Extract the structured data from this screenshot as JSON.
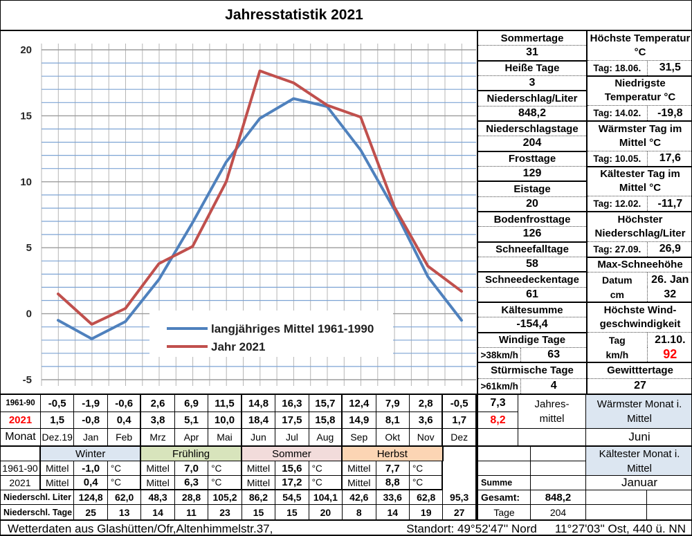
{
  "title": "Jahresstatistik 2021",
  "colors": {
    "grid_blue": "#7ca3d4",
    "grid_vertical": "#b5b5b5",
    "grid_major": "#9b9b9b",
    "red_text": "#ff0000",
    "highlight_blue": "#dce6f1"
  },
  "chart_data": {
    "type": "line",
    "title": "Jahresstatistik 2021",
    "categories": [
      "Dez.19",
      "Jan",
      "Feb",
      "Mrz",
      "Apr",
      "Mai",
      "Jun",
      "Jul",
      "Aug",
      "Sep",
      "Okt",
      "Nov",
      "Dez"
    ],
    "series": [
      {
        "name": "langjähriges Mittel 1961-1990",
        "color": "#4F81BD",
        "values": [
          -0.5,
          -1.9,
          -0.6,
          2.6,
          6.9,
          11.5,
          14.8,
          16.3,
          15.7,
          12.4,
          7.9,
          2.8,
          -0.5
        ]
      },
      {
        "name": "Jahr 2021",
        "color": "#C0504D",
        "values": [
          1.5,
          -0.8,
          0.4,
          3.8,
          5.1,
          10.0,
          18.4,
          17.5,
          15.8,
          14.9,
          8.1,
          3.6,
          1.7
        ]
      }
    ],
    "ylim": [
      -5,
      20
    ],
    "yticks": [
      20,
      15,
      10,
      5,
      0,
      -5
    ],
    "minor_grid_step": 1,
    "major_grid_step": 5,
    "grid": "on",
    "legend_position": "inside-lower-middle",
    "xlabel": "",
    "ylabel": ""
  },
  "stats_left": [
    {
      "label": "Sommertage",
      "value": "31"
    },
    {
      "label": "Heiße Tage",
      "value": "3"
    },
    {
      "label": "Niederschlag/Liter",
      "value": "848,2"
    },
    {
      "label": "Niederschlagstage",
      "value": "204"
    },
    {
      "label": "Frosttage",
      "value": "129"
    },
    {
      "label": "Eistage",
      "value": "20"
    },
    {
      "label": "Bodenfrosttage",
      "value": "126"
    },
    {
      "label": "Schneefalltage",
      "value": "58"
    },
    {
      "label": "Schneedeckentage",
      "value": "61"
    },
    {
      "label": "Kältesumme",
      "value": "-154,4"
    },
    {
      "label": "Windige Tage",
      "key": ">38km/h",
      "value": "63"
    },
    {
      "label": "Stürmische Tage",
      "key": ">61km/h",
      "value": "4"
    }
  ],
  "stats_right": [
    {
      "header_lines": [
        "Höchste Temperatur",
        "°C"
      ],
      "entries": [
        {
          "k": "Tag: 18.06.",
          "v": "31,5"
        }
      ]
    },
    {
      "header_lines": [
        "Niedrigste",
        "Temperatur °C"
      ],
      "entries": [
        {
          "k": "Tag: 14.02.",
          "v": "-19,8"
        }
      ]
    },
    {
      "header_lines": [
        "Wärmster Tag im",
        "Mittel °C"
      ],
      "entries": [
        {
          "k": "Tag: 10.05.",
          "v": "17,6"
        }
      ]
    },
    {
      "header_lines": [
        "Kältester Tag im",
        "Mittel °C"
      ],
      "entries": [
        {
          "k": "Tag: 12.02.",
          "v": "-11,7"
        }
      ]
    },
    {
      "header_lines": [
        "Höchster",
        "Niederschlag/Liter"
      ],
      "entries": [
        {
          "k": "Tag: 27.09.",
          "v": "26,9"
        }
      ]
    },
    {
      "header_lines": [
        "Max-Schneehöhe"
      ],
      "entries": [
        {
          "k": "Datum",
          "v": "26. Jan"
        },
        {
          "k": "cm",
          "v": "32"
        }
      ]
    },
    {
      "header_lines": [
        "Höchste Wind-",
        "geschwindigkeit"
      ],
      "entries": [
        {
          "k": "Tag",
          "v": "21.10."
        },
        {
          "k": "km/h",
          "v": "92",
          "red": true
        }
      ]
    },
    {
      "header_lines": [
        "Gewitttertage"
      ],
      "entries": [
        {
          "v": "27",
          "full": true
        }
      ]
    }
  ],
  "monthly": {
    "row_labels": [
      "1961-90",
      "2021",
      "Monat"
    ],
    "months": [
      "Dez.19",
      "Jan",
      "Feb",
      "Mrz",
      "Apr",
      "Mai",
      "Jun",
      "Jul",
      "Aug",
      "Sep",
      "Okt",
      "Nov",
      "Dez"
    ],
    "mean_1961_90": [
      "-0,5",
      "-1,9",
      "-0,6",
      "2,6",
      "6,9",
      "11,5",
      "14,8",
      "16,3",
      "15,7",
      "12,4",
      "7,9",
      "2,8",
      "-0,5"
    ],
    "year_2021": [
      "1,5",
      "-0,8",
      "0,4",
      "3,8",
      "5,1",
      "10,0",
      "18,4",
      "17,5",
      "15,8",
      "14,9",
      "8,1",
      "3,6",
      "1,7"
    ]
  },
  "annual": {
    "mean_1961_90": "7,3",
    "mean_2021": "8,2",
    "label_lines": [
      "Jahres-",
      "mittel"
    ],
    "warmest": {
      "label_lines": [
        "Wärmster Monat i.",
        "Mittel"
      ],
      "value": "Juni"
    },
    "coldest": {
      "label_lines": [
        "Kältester Monat i.",
        "Mittel"
      ],
      "value": "Januar"
    },
    "summe_label": "Summe",
    "gesamt_label": "Gesamt:",
    "gesamt_value": "848,2",
    "tage_label": "Tage",
    "tage_value": "204"
  },
  "seasons": {
    "names": [
      "Winter",
      "Frühling",
      "Sommer",
      "Herbst"
    ],
    "colors": [
      "#dce6f1",
      "#d8e4bc",
      "#f2dcdb",
      "#fcd5b4"
    ],
    "row_labels": [
      "1961-90",
      "2021"
    ],
    "mittel_label": "Mittel",
    "unit": "°C",
    "mean_1961_90": [
      "-1,0",
      "7,0",
      "15,6",
      "7,7"
    ],
    "year_2021": [
      "0,4",
      "6,3",
      "17,2",
      "8,8"
    ]
  },
  "precip": {
    "liter_label": "Niederschl. Liter",
    "tage_label": "Niederschl. Tage",
    "liter": [
      "124,8",
      "62,0",
      "48,3",
      "28,8",
      "105,2",
      "86,2",
      "54,5",
      "104,1",
      "42,6",
      "33,6",
      "62,8",
      "95,3"
    ],
    "tage": [
      "25",
      "13",
      "14",
      "11",
      "23",
      "15",
      "15",
      "20",
      "8",
      "14",
      "19",
      "27"
    ]
  },
  "footer": {
    "left": "Wetterdaten aus Glashütten/Ofr,Altenhimmelstr.37,",
    "right1": "Standort: 49°52'47'' Nord",
    "right2": "11°27'03'' Ost, 440 ü. NN"
  }
}
